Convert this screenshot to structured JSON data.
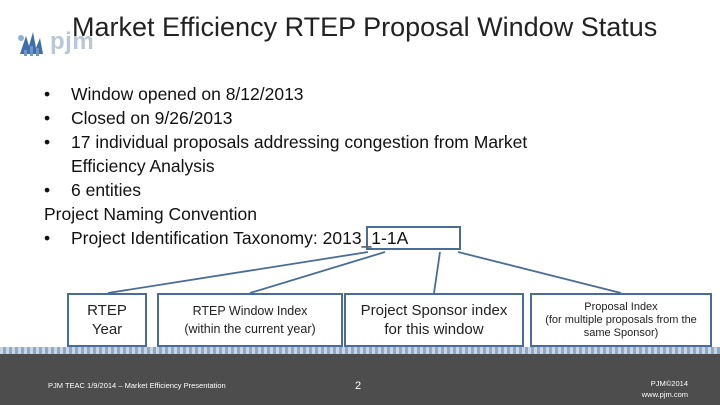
{
  "title": "Market Efficiency RTEP Proposal Window Status",
  "logo": {
    "text": "pjm"
  },
  "bullets": [
    {
      "text": "Window opened on 8/12/2013"
    },
    {
      "text": "Closed on 9/26/2013"
    },
    {
      "text": "17 individual proposals addressing congestion from Market",
      "continuation": "Efficiency Analysis"
    },
    {
      "text": "6 entities"
    }
  ],
  "naming_heading": "Project Naming Convention",
  "taxonomy": {
    "label": "Project Identification Taxonomy:",
    "example": "2013_1-1A"
  },
  "boxes": [
    {
      "line1": "RTEP",
      "line2": "Year"
    },
    {
      "line1": "RTEP Window Index",
      "line2": "(within the current year)"
    },
    {
      "line1": "Project Sponsor index",
      "line2": "for this window"
    },
    {
      "line1": "Proposal Index",
      "line2": "(for multiple proposals from the",
      "line3": "same Sponsor)"
    }
  ],
  "footer": {
    "left_text": "PJM TEAC 1/9/2014 – Market Efficiency Presentation",
    "page_number": "2",
    "copyright": "PJM©2014",
    "url": "www.pjm.com"
  },
  "colors": {
    "box_border": "#4a6d97",
    "footer_bg": "#4d4d4d",
    "logo_blue": "#3e6fa8"
  }
}
